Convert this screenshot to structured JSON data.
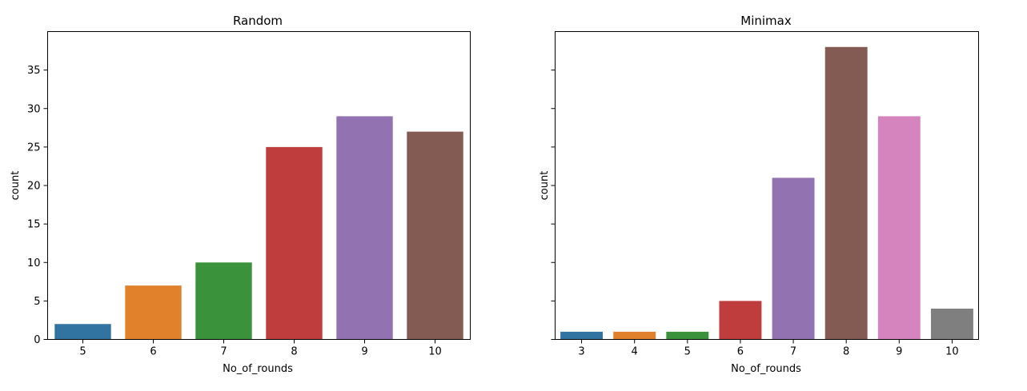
{
  "chart_data": [
    {
      "type": "bar",
      "title": "Random",
      "xlabel": "No_of_rounds",
      "ylabel": "count",
      "categories": [
        "5",
        "6",
        "7",
        "8",
        "9",
        "10"
      ],
      "values": [
        2,
        7,
        10,
        25,
        29,
        27
      ],
      "colors": [
        "#3274a1",
        "#e1812c",
        "#3a923a",
        "#c03d3e",
        "#9372b2",
        "#845b53"
      ],
      "ylim": [
        0,
        40
      ],
      "yticks": [
        0,
        5,
        10,
        15,
        20,
        25,
        30,
        35
      ],
      "ytick_labels_visible": true,
      "grid": false,
      "legend": "none"
    },
    {
      "type": "bar",
      "title": "Minimax",
      "xlabel": "No_of_rounds",
      "ylabel": "count",
      "categories": [
        "3",
        "4",
        "5",
        "6",
        "7",
        "8",
        "9",
        "10"
      ],
      "values": [
        1,
        1,
        1,
        5,
        21,
        38,
        29,
        4
      ],
      "colors": [
        "#3274a1",
        "#e1812c",
        "#3a923a",
        "#c03d3e",
        "#9372b2",
        "#845b53",
        "#d684bd",
        "#7f7f7f"
      ],
      "ylim": [
        0,
        40
      ],
      "yticks": [
        0,
        5,
        10,
        15,
        20,
        25,
        30,
        35
      ],
      "ytick_labels_visible": false,
      "grid": false,
      "legend": "none"
    }
  ]
}
